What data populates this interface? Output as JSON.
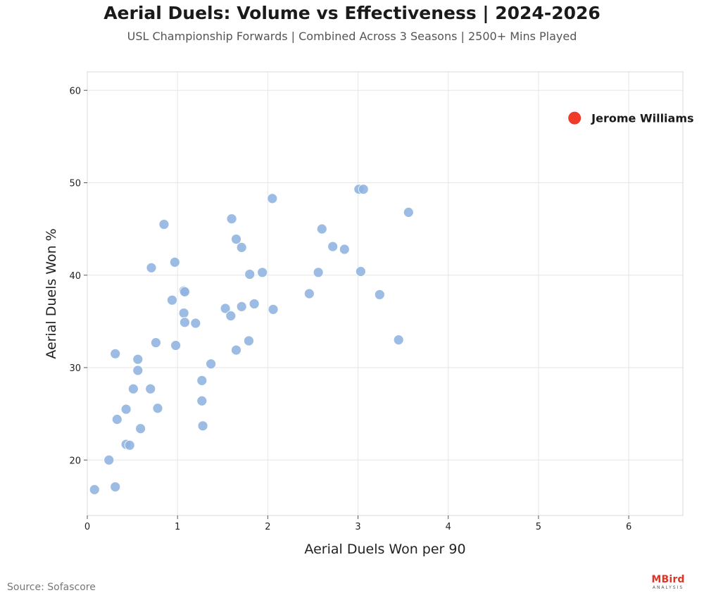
{
  "source": "Source: Sofascore",
  "logo": {
    "main": "MBird",
    "sub": "ANALYSIS"
  },
  "chart_data": {
    "type": "scatter",
    "title": "Aerial Duels: Volume vs Effectiveness | 2024-2026",
    "subtitle": "USL Championship Forwards | Combined Across 3 Seasons | 2500+ Mins Played",
    "xlabel": "Aerial Duels Won per 90",
    "ylabel": "Aerial Duels Won %",
    "xlim": [
      0,
      6.6
    ],
    "ylim": [
      14,
      62
    ],
    "xticks": [
      0,
      1,
      2,
      3,
      4,
      5,
      6
    ],
    "yticks": [
      20,
      30,
      40,
      50,
      60
    ],
    "grid": true,
    "colors": {
      "points": "#8fb3e0",
      "highlight": "#f03a2a",
      "grid": "#e6e6e6"
    },
    "series": [
      {
        "points": [
          [
            0.08,
            16.8
          ],
          [
            0.31,
            17.1
          ],
          [
            0.24,
            20.0
          ],
          [
            0.43,
            21.7
          ],
          [
            0.47,
            21.6
          ],
          [
            0.33,
            24.4
          ],
          [
            0.43,
            25.5
          ],
          [
            0.59,
            23.4
          ],
          [
            0.51,
            27.7
          ],
          [
            0.7,
            27.7
          ],
          [
            0.78,
            25.6
          ],
          [
            0.56,
            29.7
          ],
          [
            0.56,
            30.9
          ],
          [
            0.31,
            31.5
          ],
          [
            0.76,
            32.7
          ],
          [
            0.98,
            32.4
          ],
          [
            0.71,
            40.8
          ],
          [
            0.85,
            45.5
          ],
          [
            0.94,
            37.3
          ],
          [
            0.97,
            41.4
          ],
          [
            1.07,
            38.3
          ],
          [
            1.08,
            38.2
          ],
          [
            1.07,
            35.9
          ],
          [
            1.08,
            34.9
          ],
          [
            1.2,
            34.8
          ],
          [
            1.27,
            28.6
          ],
          [
            1.27,
            26.4
          ],
          [
            1.28,
            23.7
          ],
          [
            1.37,
            30.4
          ],
          [
            1.53,
            36.4
          ],
          [
            1.59,
            35.6
          ],
          [
            1.65,
            31.9
          ],
          [
            1.71,
            36.6
          ],
          [
            1.6,
            46.1
          ],
          [
            1.65,
            43.9
          ],
          [
            1.71,
            43.0
          ],
          [
            1.8,
            40.1
          ],
          [
            1.85,
            36.9
          ],
          [
            1.79,
            32.9
          ],
          [
            1.94,
            40.3
          ],
          [
            2.05,
            48.3
          ],
          [
            2.06,
            36.3
          ],
          [
            2.46,
            38.0
          ],
          [
            2.56,
            40.3
          ],
          [
            2.6,
            45.0
          ],
          [
            2.72,
            43.1
          ],
          [
            2.85,
            42.8
          ],
          [
            3.01,
            49.3
          ],
          [
            3.06,
            49.3
          ],
          [
            3.03,
            40.4
          ],
          [
            3.24,
            37.9
          ],
          [
            3.45,
            33.0
          ],
          [
            3.56,
            46.8
          ]
        ]
      },
      {
        "name": "Jerome Williams",
        "points": [
          [
            5.4,
            57.0
          ]
        ]
      }
    ]
  }
}
